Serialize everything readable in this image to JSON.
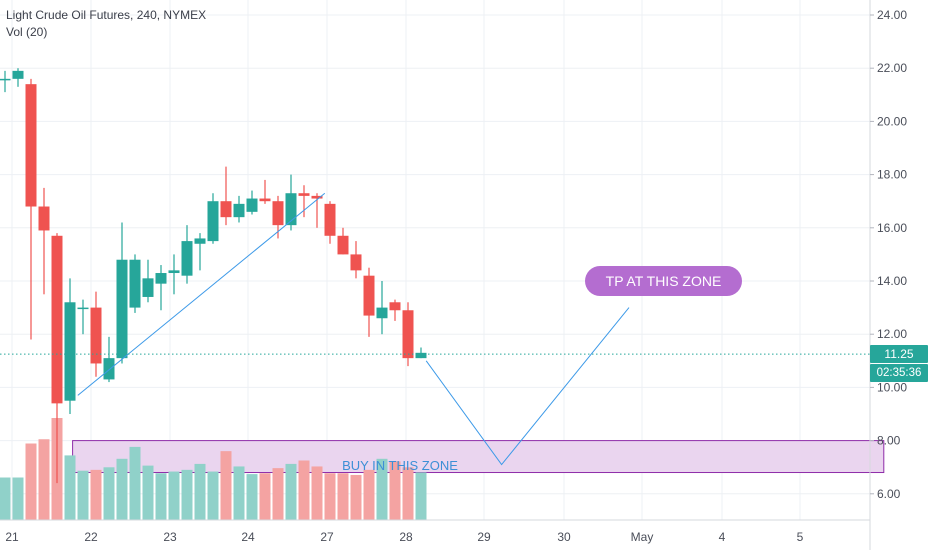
{
  "legend": {
    "symbol": "Light Crude Oil Futures, 240, NYMEX",
    "volume": "Vol (20)"
  },
  "price_tag": "11.25",
  "countdown": "02:35:36",
  "annotations": {
    "tp_label": "TP AT THIS ZONE",
    "buy_label": "BUY IN THIS ZONE"
  },
  "colors": {
    "up": "#26a69a",
    "down": "#ef5350",
    "vol_up": "#90d1c9",
    "vol_down": "#f4a3a2",
    "trendline": "#3d9ae8",
    "zone_fill": "#ead5ef",
    "zone_border": "#8e2ca8",
    "tp_bubble": "#b46dd0"
  },
  "chart_data": {
    "type": "candlestick",
    "symbol": "Light Crude Oil Futures",
    "interval": "240",
    "exchange": "NYMEX",
    "yaxis": {
      "ticks": [
        "24.00",
        "22.00",
        "20.00",
        "18.00",
        "16.00",
        "14.00",
        "12.00",
        "10.00",
        "8.00",
        "6.00"
      ],
      "range": [
        4.9,
        24.5
      ]
    },
    "xaxis": {
      "ticks": [
        "21",
        "22",
        "23",
        "24",
        "27",
        "28",
        "29",
        "30",
        "May",
        "4",
        "5"
      ]
    },
    "candles": [
      {
        "o": 21.6,
        "h": 21.9,
        "l": 21.1,
        "c": 21.6
      },
      {
        "o": 21.6,
        "h": 22.0,
        "l": 21.3,
        "c": 21.9
      },
      {
        "o": 21.4,
        "h": 21.6,
        "l": 11.8,
        "c": 16.8
      },
      {
        "o": 16.8,
        "h": 17.5,
        "l": 13.5,
        "c": 15.9
      },
      {
        "o": 15.7,
        "h": 15.8,
        "l": 6.4,
        "c": 9.4
      },
      {
        "o": 9.5,
        "h": 14.1,
        "l": 9.0,
        "c": 13.2
      },
      {
        "o": 13.0,
        "h": 13.3,
        "l": 12.0,
        "c": 13.0
      },
      {
        "o": 13.0,
        "h": 13.6,
        "l": 10.4,
        "c": 10.9
      },
      {
        "o": 10.3,
        "h": 11.9,
        "l": 10.2,
        "c": 11.1
      },
      {
        "o": 11.1,
        "h": 16.2,
        "l": 10.9,
        "c": 14.8
      },
      {
        "o": 13.0,
        "h": 15.0,
        "l": 12.8,
        "c": 14.8
      },
      {
        "o": 13.4,
        "h": 14.8,
        "l": 13.2,
        "c": 14.1
      },
      {
        "o": 13.9,
        "h": 14.6,
        "l": 12.9,
        "c": 14.3
      },
      {
        "o": 14.3,
        "h": 15.0,
        "l": 13.5,
        "c": 14.4
      },
      {
        "o": 14.2,
        "h": 16.1,
        "l": 13.9,
        "c": 15.5
      },
      {
        "o": 15.4,
        "h": 15.8,
        "l": 14.4,
        "c": 15.6
      },
      {
        "o": 15.5,
        "h": 17.3,
        "l": 15.4,
        "c": 17.0
      },
      {
        "o": 17.0,
        "h": 18.3,
        "l": 16.1,
        "c": 16.4
      },
      {
        "o": 16.4,
        "h": 17.2,
        "l": 16.2,
        "c": 16.9
      },
      {
        "o": 16.6,
        "h": 17.4,
        "l": 16.5,
        "c": 17.1
      },
      {
        "o": 17.1,
        "h": 17.8,
        "l": 16.9,
        "c": 17.0
      },
      {
        "o": 17.0,
        "h": 17.2,
        "l": 15.6,
        "c": 16.1
      },
      {
        "o": 16.1,
        "h": 18.0,
        "l": 15.9,
        "c": 17.3
      },
      {
        "o": 17.3,
        "h": 17.6,
        "l": 16.4,
        "c": 17.2
      },
      {
        "o": 17.2,
        "h": 17.3,
        "l": 16.0,
        "c": 17.1
      },
      {
        "o": 16.9,
        "h": 17.0,
        "l": 15.4,
        "c": 15.7
      },
      {
        "o": 15.7,
        "h": 16.0,
        "l": 15.0,
        "c": 15.0
      },
      {
        "o": 15.0,
        "h": 15.5,
        "l": 14.1,
        "c": 14.4
      },
      {
        "o": 14.2,
        "h": 14.5,
        "l": 11.9,
        "c": 12.7
      },
      {
        "o": 12.6,
        "h": 14.0,
        "l": 12.0,
        "c": 13.0
      },
      {
        "o": 13.2,
        "h": 13.3,
        "l": 12.5,
        "c": 12.9
      },
      {
        "o": 12.9,
        "h": 13.2,
        "l": 10.8,
        "c": 11.1
      },
      {
        "o": 11.1,
        "h": 11.5,
        "l": 11.1,
        "c": 11.3
      }
    ],
    "volume": [
      5.0,
      5.0,
      9.0,
      9.5,
      12.0,
      7.6,
      5.8,
      5.9,
      6.2,
      7.2,
      8.6,
      6.4,
      5.5,
      5.7,
      5.9,
      6.6,
      5.7,
      8.1,
      6.3,
      5.4,
      5.5,
      6.1,
      6.6,
      7.0,
      6.3,
      5.5,
      5.5,
      5.3,
      5.9,
      7.2,
      6.9,
      6.2,
      5.6
    ],
    "drawings": {
      "rising_trendline": {
        "from": {
          "bar": 5.6,
          "price": 9.7
        },
        "to": {
          "bar": 24.6,
          "price": 17.3
        }
      },
      "buy_zone": {
        "x_from_bar": 5.2,
        "x_to_bar": 67.6,
        "price_top": 8.0,
        "price_bottom": 6.8
      },
      "projection_path": [
        {
          "bar": 32.4,
          "price": 11.0
        },
        {
          "bar": 38.2,
          "price": 7.1
        },
        {
          "bar": 48.0,
          "price": 13.0
        }
      ]
    }
  }
}
